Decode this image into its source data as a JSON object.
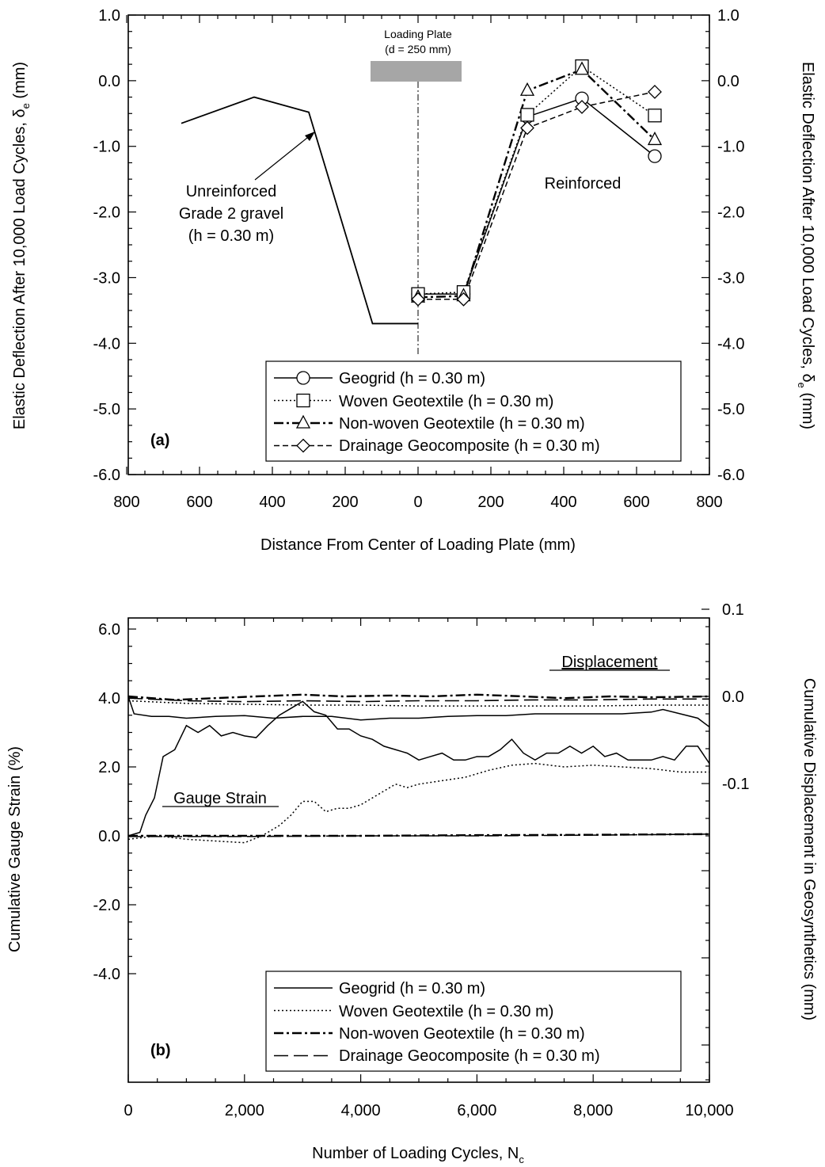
{
  "chart_data": [
    {
      "type": "line",
      "panel_label": "(a)",
      "xlabel": "Distance From Center of Loading Plate (mm)",
      "ylabel_left": {
        "main": "Elastic Deflection After 10,000 Load Cycles, δ",
        "sub": "e",
        "unit": " (mm)"
      },
      "ylabel_right": {
        "main": "Elastic Deflection After 10,000 Load Cycles, δ",
        "sub": "e",
        "unit": " (mm)"
      },
      "x_tick_labels": [
        "800",
        "600",
        "400",
        "200",
        "0",
        "200",
        "400",
        "600",
        "800"
      ],
      "y_tick_labels": [
        "1.0",
        "0.0",
        "-1.0",
        "-2.0",
        "-3.0",
        "-4.0",
        "-5.0",
        "-6.0"
      ],
      "ylim": [
        -6,
        1
      ],
      "x_note": "left half shows distance on the opposite side of plate center",
      "loading_plate_label": [
        "Loading Plate",
        "(d = 250 mm)"
      ],
      "annotation_unreinforced": [
        "Unreinforced",
        "Grade 2 gravel",
        "(h = 0.30 m)"
      ],
      "annotation_reinforced": "Reinforced",
      "unreinforced_series": {
        "name": "Unreinforced Grade 2 gravel (h = 0.30 m)",
        "x": [
          -650,
          -450,
          -300,
          -125,
          0
        ],
        "y": [
          -0.65,
          -0.25,
          -0.48,
          -3.7,
          -3.7
        ]
      },
      "series": [
        {
          "name": "Geogrid (h = 0.30 m)",
          "marker": "circle",
          "dash": "solid",
          "x": [
            0,
            125,
            300,
            450,
            650
          ],
          "y": [
            -3.25,
            -3.25,
            -0.55,
            -0.27,
            -1.15
          ]
        },
        {
          "name": "Woven Geotextile (h = 0.30 m)",
          "marker": "square",
          "dash": "dotted",
          "x": [
            0,
            125,
            300,
            450,
            650
          ],
          "y": [
            -3.25,
            -3.22,
            -0.52,
            0.22,
            -0.53
          ]
        },
        {
          "name": "Non-woven Geotextile (h = 0.30 m)",
          "marker": "triangle",
          "dash": "dashdot",
          "x": [
            0,
            125,
            300,
            450,
            650
          ],
          "y": [
            -3.3,
            -3.28,
            -0.15,
            0.17,
            -0.9
          ]
        },
        {
          "name": "Drainage Geocomposite (h = 0.30 m)",
          "marker": "diamond",
          "dash": "dashed",
          "x": [
            0,
            125,
            300,
            450,
            650
          ],
          "y": [
            -3.33,
            -3.33,
            -0.72,
            -0.4,
            -0.17
          ]
        }
      ]
    },
    {
      "type": "line",
      "panel_label": "(b)",
      "xlabel": {
        "main": "Number of Loading Cycles, N",
        "sub": "c"
      },
      "ylabel_left": "Cumulative Gauge Strain (%)",
      "ylabel_right": "Cumulative Displacement in Geosynthetics (mm)",
      "x_tick_labels": [
        "0",
        "2,000",
        "4,000",
        "6,000",
        "8,000",
        "10,000"
      ],
      "xlim": [
        0,
        10000
      ],
      "y_left_tick_labels": [
        "6.0",
        "4.0",
        "2.0",
        "0.0",
        "-2.0",
        "-4.0"
      ],
      "y_left_range": [
        -4,
        10
      ],
      "y_right_tick_labels": [
        "0.1",
        "0.0",
        "-0.1"
      ],
      "annotation_displacement": "Displacement",
      "annotation_strain": "Gauge Strain",
      "strain_series": [
        {
          "name": "Geogrid (h = 0.30 m)",
          "dash": "solid",
          "x": [
            0,
            200,
            300,
            450,
            600,
            800,
            1000,
            1200,
            1400,
            1600,
            1800,
            2000,
            2200,
            2400,
            2600,
            2800,
            3000,
            3200,
            3400,
            3600,
            3800,
            4000,
            4200,
            4400,
            4600,
            4800,
            5000,
            5200,
            5400,
            5600,
            5800,
            6000,
            6200,
            6400,
            6600,
            6800,
            7000,
            7200,
            7400,
            7600,
            7800,
            8000,
            8200,
            8400,
            8600,
            8800,
            9000,
            9200,
            9400,
            9600,
            9800,
            10000
          ],
          "y": [
            0.0,
            0.1,
            0.6,
            1.1,
            2.3,
            2.5,
            3.2,
            3.0,
            3.2,
            2.9,
            3.0,
            2.9,
            2.85,
            3.2,
            3.5,
            3.7,
            3.9,
            3.6,
            3.5,
            3.1,
            3.1,
            2.9,
            2.8,
            2.6,
            2.5,
            2.4,
            2.2,
            2.3,
            2.4,
            2.2,
            2.2,
            2.3,
            2.3,
            2.5,
            2.8,
            2.4,
            2.2,
            2.4,
            2.4,
            2.6,
            2.4,
            2.6,
            2.3,
            2.4,
            2.2,
            2.2,
            2.2,
            2.3,
            2.2,
            2.6,
            2.6,
            2.1
          ]
        },
        {
          "name": "Woven Geotextile (h = 0.30 m)",
          "dash": "dotted",
          "x": [
            0,
            500,
            1000,
            1500,
            2000,
            2300,
            2600,
            2800,
            3000,
            3200,
            3400,
            3600,
            3800,
            4000,
            4200,
            4400,
            4600,
            4800,
            5000,
            5400,
            5800,
            6200,
            6600,
            7000,
            7500,
            8000,
            8500,
            9000,
            9500,
            10000
          ],
          "y": [
            -0.1,
            0.0,
            -0.1,
            -0.15,
            -0.2,
            0.0,
            0.3,
            0.6,
            1.0,
            1.0,
            0.7,
            0.8,
            0.8,
            0.9,
            1.1,
            1.3,
            1.5,
            1.4,
            1.5,
            1.6,
            1.7,
            1.9,
            2.05,
            2.1,
            2.0,
            2.05,
            2.0,
            1.95,
            1.85,
            1.85
          ]
        },
        {
          "name": "Non-woven Geotextile (h = 0.30 m)",
          "dash": "dashdot",
          "x": [
            0,
            2000,
            4000,
            6000,
            8000,
            10000
          ],
          "y": [
            0.0,
            0.0,
            0.0,
            0.02,
            0.03,
            0.05
          ]
        },
        {
          "name": "Drainage Geocomposite (h = 0.30 m)",
          "dash": "longdash",
          "x": [
            0,
            2000,
            4000,
            6000,
            8000,
            10000
          ],
          "y": [
            -0.02,
            -0.02,
            0.0,
            0.0,
            0.02,
            0.05
          ]
        }
      ],
      "displacement_series": [
        {
          "name": "Geogrid (h = 0.30 m)",
          "dash": "solid",
          "x": [
            0,
            100,
            400,
            700,
            1000,
            1500,
            2000,
            2500,
            3000,
            3500,
            4000,
            4500,
            5000,
            5500,
            6000,
            6500,
            7000,
            7500,
            8000,
            8500,
            9000,
            9200,
            9500,
            9800,
            10000
          ],
          "y": [
            0.0,
            -0.02,
            -0.023,
            -0.023,
            -0.025,
            -0.023,
            -0.022,
            -0.025,
            -0.023,
            -0.023,
            -0.027,
            -0.025,
            -0.025,
            -0.023,
            -0.022,
            -0.022,
            -0.02,
            -0.02,
            -0.02,
            -0.02,
            -0.018,
            -0.015,
            -0.02,
            -0.025,
            -0.035
          ]
        },
        {
          "name": "Woven Geotextile (h = 0.30 m)",
          "dash": "dotted",
          "x": [
            0,
            1000,
            2000,
            3000,
            4000,
            5000,
            6000,
            7000,
            8000,
            9000,
            10000
          ],
          "y": [
            -0.005,
            -0.008,
            -0.009,
            -0.01,
            -0.01,
            -0.011,
            -0.011,
            -0.011,
            -0.011,
            -0.01,
            -0.01
          ]
        },
        {
          "name": "Non-woven Geotextile (h = 0.30 m)",
          "dash": "dashdot",
          "x": [
            0,
            800,
            1500,
            2200,
            3000,
            3700,
            4500,
            5200,
            6000,
            6800,
            7500,
            8300,
            9000,
            10000
          ],
          "y": [
            0.0,
            -0.004,
            -0.002,
            0.0,
            0.002,
            0.0,
            0.001,
            0.0,
            0.002,
            0.0,
            -0.002,
            0.0,
            -0.001,
            0.0
          ]
        },
        {
          "name": "Drainage Geocomposite (h = 0.30 m)",
          "dash": "longdash",
          "x": [
            0,
            1000,
            2000,
            3000,
            4000,
            5000,
            6000,
            7000,
            8000,
            9000,
            10000
          ],
          "y": [
            -0.002,
            -0.005,
            -0.006,
            -0.005,
            -0.006,
            -0.005,
            -0.005,
            -0.004,
            -0.004,
            -0.003,
            -0.003
          ]
        }
      ]
    }
  ]
}
